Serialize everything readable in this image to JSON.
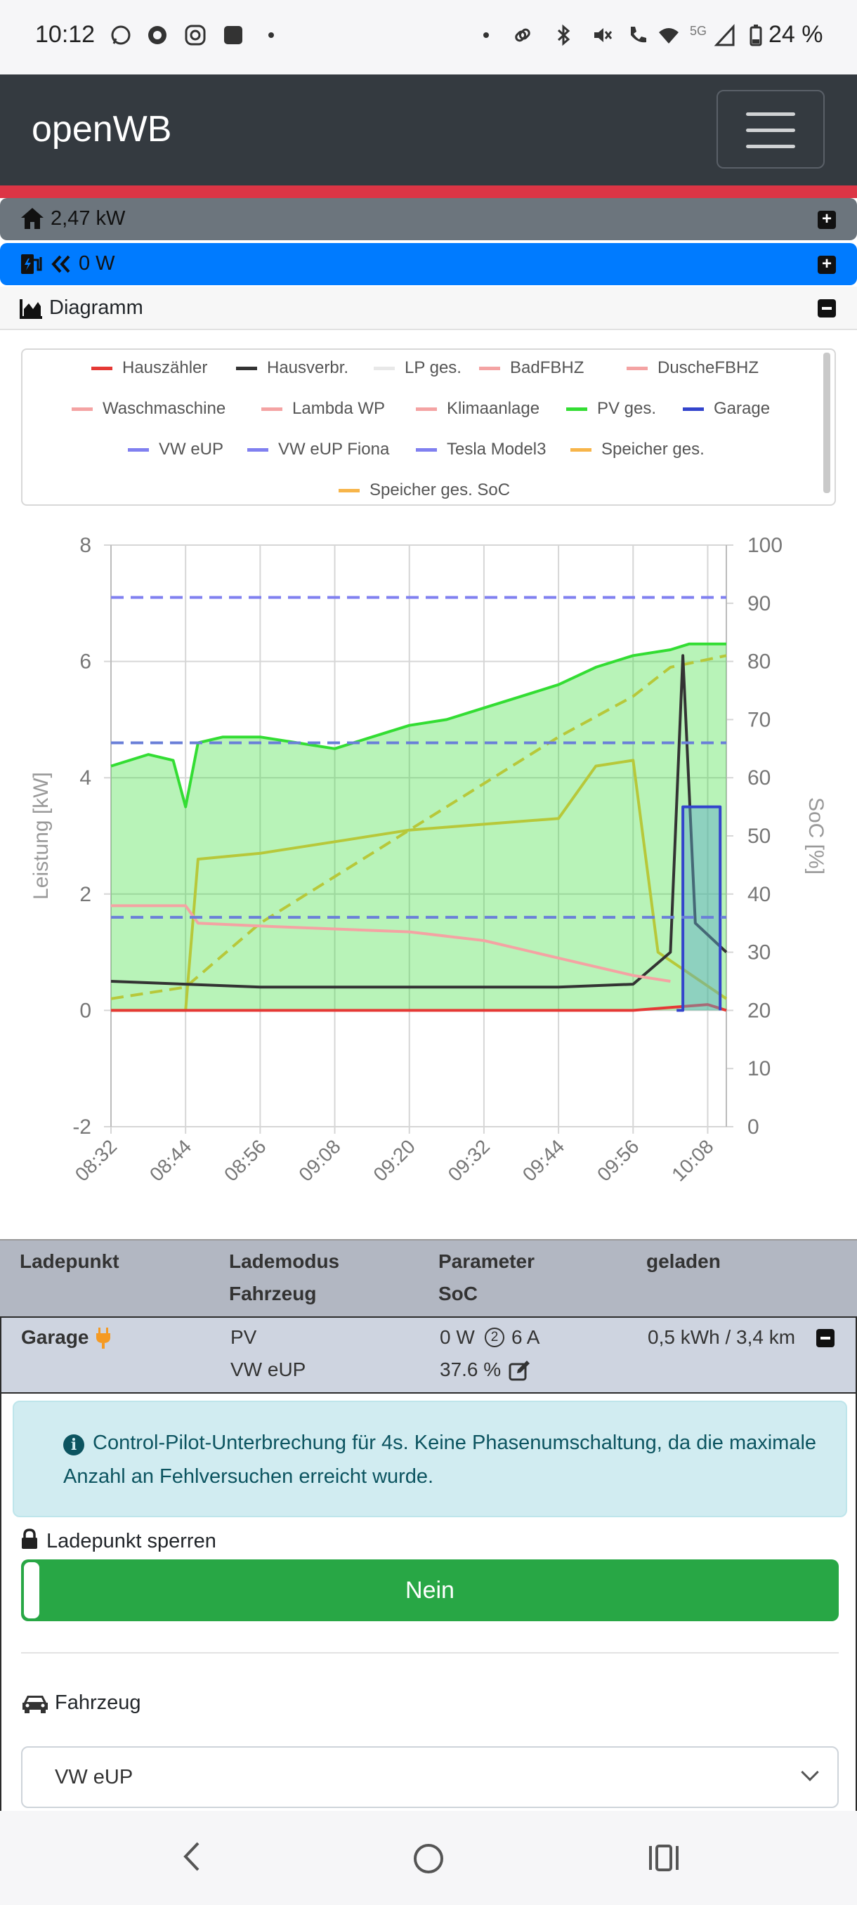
{
  "status_bar": {
    "time": "10:12",
    "battery": "24 %",
    "network": "5G"
  },
  "navbar": {
    "brand": "openWB",
    "menu_icon": "hamburger-menu-icon"
  },
  "house_bar": {
    "label": "2,47 kW"
  },
  "charge_bar": {
    "label": "0 W"
  },
  "diagram": {
    "label": "Diagramm"
  },
  "legend": [
    {
      "name": "Hauszähler",
      "color": "#e53935"
    },
    {
      "name": "Hausverbr.",
      "color": "#333333"
    },
    {
      "name": "LP ges.",
      "color": "#e8e8e8"
    },
    {
      "name": "BadFBHZ",
      "color": "#f4a3a3"
    },
    {
      "name": "DuscheFBHZ",
      "color": "#f4a3a3"
    },
    {
      "name": "Waschmaschine",
      "color": "#f4a3a3"
    },
    {
      "name": "Lambda WP",
      "color": "#f4a3a3"
    },
    {
      "name": "Klimaanlage",
      "color": "#f4a3a3"
    },
    {
      "name": "PV ges.",
      "color": "#33dd33"
    },
    {
      "name": "Garage",
      "color": "#3344cc"
    },
    {
      "name": "VW eUP",
      "color": "#8080f0"
    },
    {
      "name": "VW eUP Fiona",
      "color": "#8080f0"
    },
    {
      "name": "Tesla Model3",
      "color": "#8080f0"
    },
    {
      "name": "Speicher ges.",
      "color": "#f7b54a"
    },
    {
      "name": "Speicher ges. SoC",
      "color": "#f7b54a"
    }
  ],
  "chart_data": {
    "type": "line",
    "ylabel": "Leistung [kW]",
    "y2label": "SoC [%]",
    "ylim": [
      -2,
      8
    ],
    "y2lim": [
      0,
      100
    ],
    "yticks": [
      "8",
      "6",
      "4",
      "2",
      "0",
      "-2"
    ],
    "y2ticks": [
      "100",
      "90",
      "80",
      "70",
      "60",
      "50",
      "40",
      "30",
      "20",
      "10",
      "0"
    ],
    "xticks": [
      "08:32",
      "08:44",
      "08:56",
      "09:08",
      "09:20",
      "09:32",
      "09:44",
      "09:56",
      "10:08"
    ],
    "grid": true,
    "series": [
      {
        "name": "PV ges.",
        "color": "#33dd33",
        "axis": "left",
        "fill": true,
        "x": [
          "08:32",
          "08:35",
          "08:38",
          "08:42",
          "08:44",
          "08:46",
          "08:50",
          "08:56",
          "09:02",
          "09:08",
          "09:14",
          "09:20",
          "09:26",
          "09:32",
          "09:38",
          "09:44",
          "09:50",
          "09:56",
          "10:02",
          "10:05",
          "10:08",
          "10:11"
        ],
        "y": [
          4.2,
          4.3,
          4.4,
          4.3,
          3.5,
          4.6,
          4.7,
          4.7,
          4.6,
          4.5,
          4.7,
          4.9,
          5.0,
          5.2,
          5.4,
          5.6,
          5.9,
          6.1,
          6.2,
          6.3,
          6.3,
          6.3
        ]
      },
      {
        "name": "Speicher ges.",
        "color": "#b7c83a",
        "axis": "left",
        "x": [
          "08:32",
          "08:44",
          "08:46",
          "08:56",
          "09:08",
          "09:20",
          "09:32",
          "09:44",
          "09:50",
          "09:56",
          "10:00",
          "10:11"
        ],
        "y": [
          0.0,
          0.0,
          2.6,
          2.7,
          2.9,
          3.1,
          3.2,
          3.3,
          4.2,
          4.3,
          1.0,
          0.2
        ]
      },
      {
        "name": "Speicher ges. SoC",
        "color": "#b7c83a",
        "axis": "right",
        "dashed": true,
        "x": [
          "08:32",
          "08:44",
          "08:56",
          "09:08",
          "09:20",
          "09:32",
          "09:44",
          "09:56",
          "10:02",
          "10:11"
        ],
        "y": [
          22,
          24,
          35,
          43,
          51,
          59,
          67,
          74,
          79,
          81
        ]
      },
      {
        "name": "Hausverbr.",
        "color": "#333333",
        "axis": "left",
        "x": [
          "08:32",
          "08:44",
          "08:56",
          "09:08",
          "09:20",
          "09:32",
          "09:44",
          "09:56",
          "10:02",
          "10:04",
          "10:06",
          "10:11"
        ],
        "y": [
          0.5,
          0.45,
          0.4,
          0.4,
          0.4,
          0.4,
          0.4,
          0.45,
          1.0,
          6.1,
          1.5,
          1.0
        ]
      },
      {
        "name": "Hauszähler",
        "color": "#e53935",
        "axis": "left",
        "x": [
          "08:32",
          "08:44",
          "08:56",
          "09:08",
          "09:20",
          "09:32",
          "09:44",
          "09:56",
          "10:08",
          "10:11"
        ],
        "y": [
          0.0,
          0.0,
          0.0,
          0.0,
          0.0,
          0.0,
          0.0,
          0.0,
          0.1,
          0.0
        ]
      },
      {
        "name": "Waschmaschine",
        "color": "#f4a3a3",
        "axis": "left",
        "x": [
          "08:32",
          "08:44",
          "08:46",
          "08:56",
          "09:08",
          "09:20",
          "09:32",
          "09:44",
          "09:56",
          "10:02"
        ],
        "y": [
          1.8,
          1.8,
          1.5,
          1.45,
          1.4,
          1.35,
          1.2,
          0.9,
          0.6,
          0.5
        ]
      },
      {
        "name": "Garage",
        "color": "#3344cc",
        "axis": "left",
        "x": [
          "10:03",
          "10:04",
          "10:04",
          "10:10",
          "10:10"
        ],
        "y": [
          0.0,
          0.0,
          3.5,
          3.5,
          0.0
        ]
      },
      {
        "name": "VW eUP",
        "color": "#8080f0",
        "axis": "right",
        "dashed": true,
        "x": [
          "08:32",
          "10:11"
        ],
        "y": [
          91,
          91
        ]
      },
      {
        "name": "Tesla Model3",
        "color": "#6a7fd8",
        "axis": "right",
        "dashed": true,
        "x": [
          "08:32",
          "10:11"
        ],
        "y": [
          66,
          66
        ]
      },
      {
        "name": "VW eUP Fiona",
        "color": "#6a7fd8",
        "axis": "right",
        "dashed": true,
        "x": [
          "08:32",
          "10:11"
        ],
        "y": [
          36,
          36
        ]
      }
    ]
  },
  "table": {
    "headers": {
      "col1": "Ladepunkt",
      "col2a": "Lademodus",
      "col2b": "Fahrzeug",
      "col3a": "Parameter",
      "col3b": "SoC",
      "col4": "geladen"
    },
    "row": {
      "ladepunkt": "Garage",
      "mode": "PV",
      "vehicle": "VW eUP",
      "power": "0 W",
      "phases": "2",
      "current": "6 A",
      "soc": "37.6 %",
      "charged": "0,5 kWh / 3,4 km"
    }
  },
  "card": {
    "alert": "Control-Pilot-Unterbrechung für 4s. Keine Phasenumschaltung, da die maximale Anzahl an Fehlversuchen erreicht wurde.",
    "lock_label": "Ladepunkt sperren",
    "lock_value": "Nein",
    "vehicle_label": "Fahrzeug",
    "vehicle_selected": "VW eUP"
  }
}
